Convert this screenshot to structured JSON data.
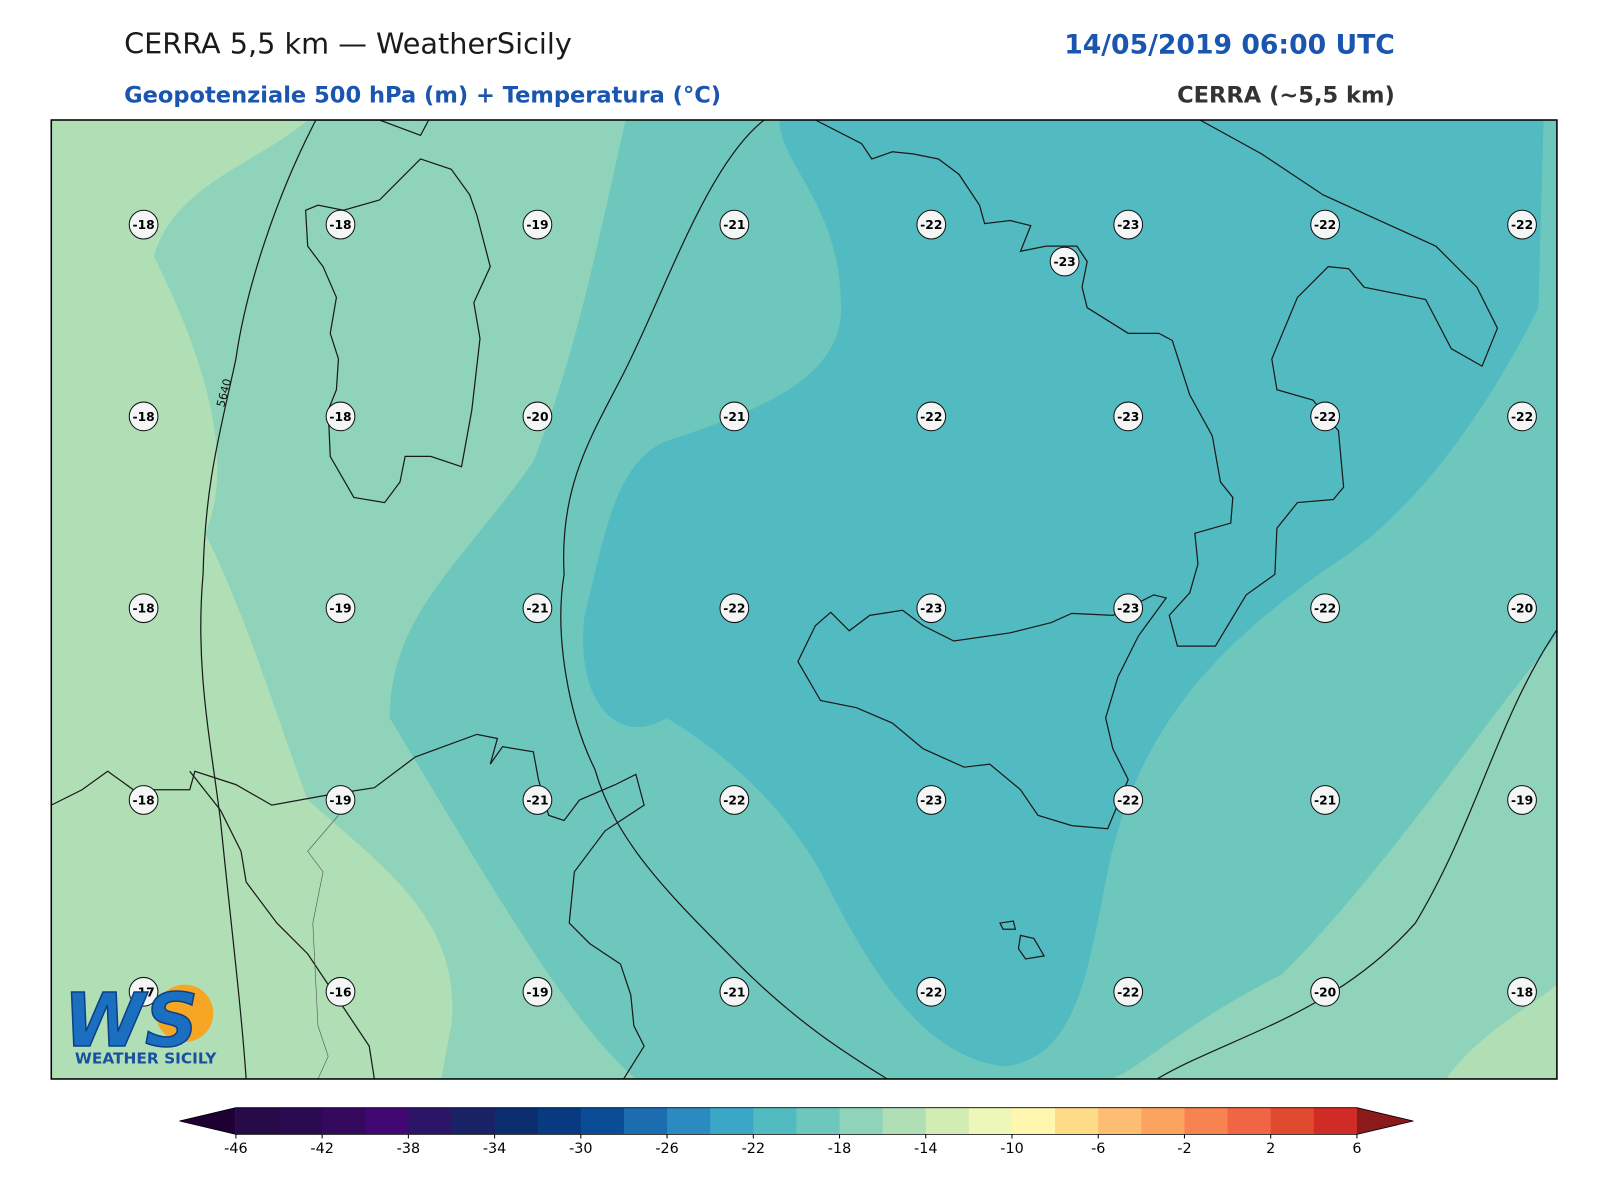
{
  "header": {
    "title": "CERRA 5,5 km — WeatherSicily",
    "datetime": "14/05/2019 06:00 UTC",
    "subtitle": "Geopotenziale 500 hPa (m) + Temperatura (°C)",
    "source": "CERRA (~5,5 km)"
  },
  "stations": [
    [
      -18,
      -18,
      -19,
      -21,
      -22,
      -23,
      -22,
      -22
    ],
    [
      -18,
      -18,
      -20,
      -21,
      -22,
      -23,
      -22,
      -22
    ],
    [
      -18,
      -19,
      -21,
      -22,
      -23,
      -23,
      -22,
      -20
    ],
    [
      -18,
      -19,
      -21,
      -22,
      -23,
      -22,
      -21,
      -19
    ],
    [
      -17,
      -16,
      -19,
      -21,
      -22,
      -22,
      -20,
      -18
    ]
  ],
  "extra_station": -23,
  "contour_label": "5640",
  "logo": {
    "mark": "WS",
    "caption": "WEATHER SICILY"
  },
  "colorbar": {
    "levels": [
      -46,
      -44,
      -42,
      -40,
      -38,
      -36,
      -34,
      -32,
      -30,
      -28,
      -26,
      -24,
      -22,
      -20,
      -18,
      -16,
      -14,
      -12,
      -10,
      -8,
      -6,
      -4,
      -2,
      0,
      2,
      4,
      6
    ],
    "colors": [
      "#270a48",
      "#2b0a52",
      "#35095e",
      "#420773",
      "#2c1566",
      "#1a2266",
      "#0a2d6e",
      "#073a80",
      "#0b4c96",
      "#1c6cb0",
      "#2b8bc0",
      "#3aa7c7",
      "#52bbc1",
      "#6ec7bd",
      "#8fd4ba",
      "#b0dfb6",
      "#d2ecb4",
      "#edf7b8",
      "#fff7b0",
      "#fedb87",
      "#fdbe73",
      "#fca35f",
      "#f78350",
      "#f06543",
      "#e1492f",
      "#d02b25"
    ],
    "under_color": "#1e0035",
    "over_color": "#8b1a1a",
    "ticks": [
      -46,
      -42,
      -38,
      -34,
      -30,
      -26,
      -22,
      -18,
      -14,
      -10,
      -6,
      -2,
      2,
      6
    ]
  }
}
